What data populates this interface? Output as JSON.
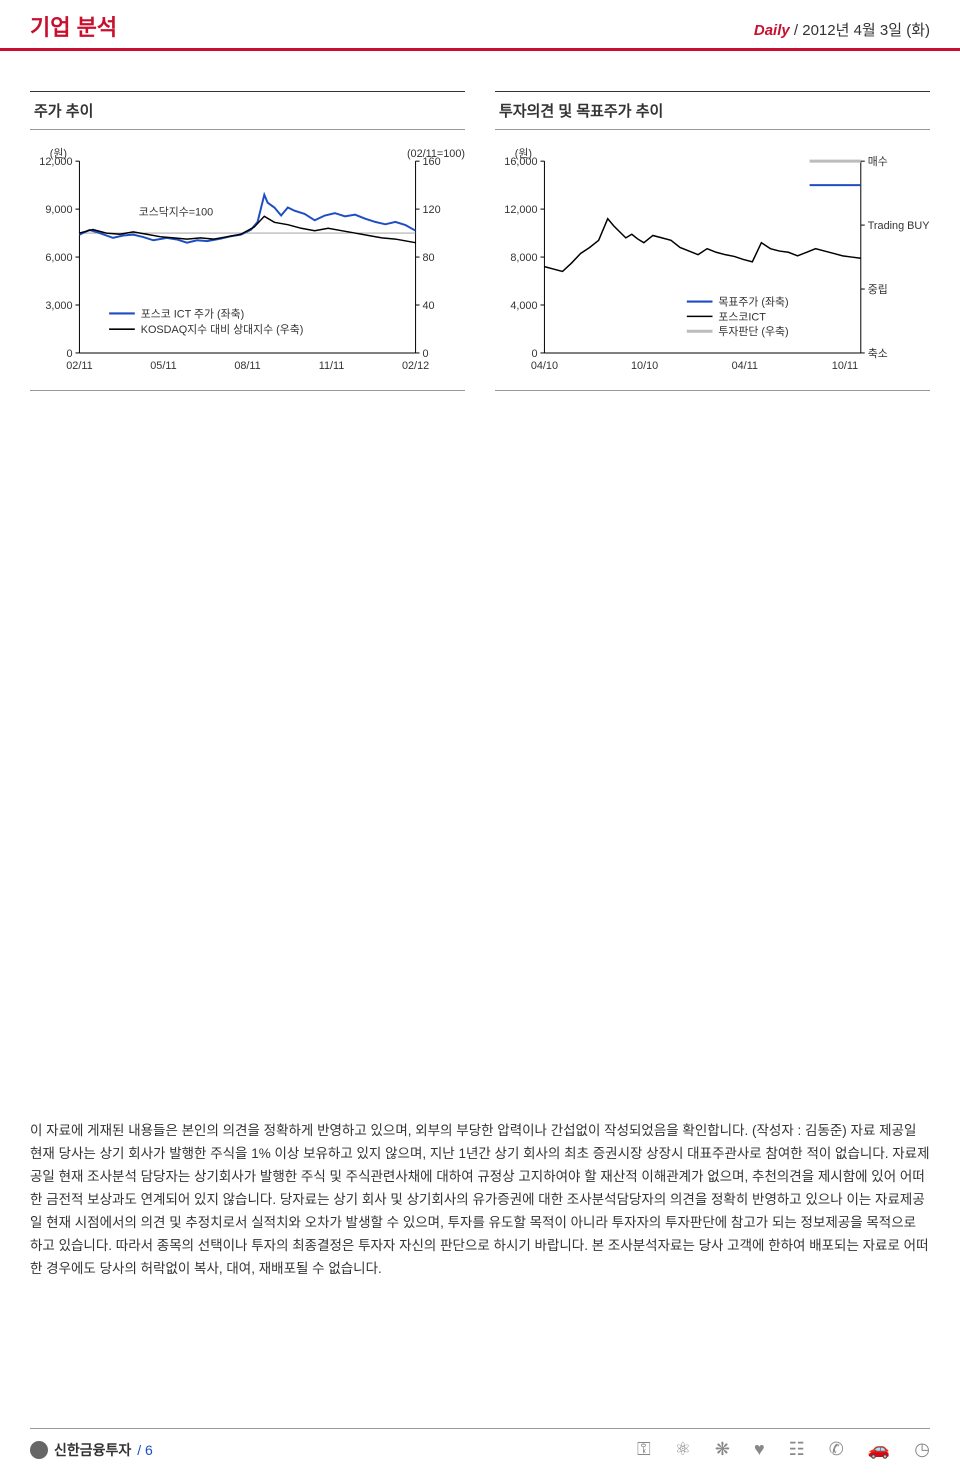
{
  "header": {
    "title": "기업 분석",
    "daily": "Daily",
    "separator": "/",
    "date": "2012년 4월 3일 (화)"
  },
  "chart1": {
    "type": "line-dual-axis",
    "title": "주가 추이",
    "left_axis_label": "(원)",
    "right_axis_label": "(02/11=100)",
    "left_ticks": [
      0,
      3000,
      6000,
      9000,
      12000
    ],
    "left_tick_labels": [
      "0",
      "3,000",
      "6,000",
      "9,000",
      "12,000"
    ],
    "right_ticks": [
      0,
      40,
      80,
      120,
      160
    ],
    "right_tick_labels": [
      "0",
      "40",
      "80",
      "120",
      "160"
    ],
    "x_labels": [
      "02/11",
      "05/11",
      "08/11",
      "11/11",
      "02/12"
    ],
    "annotation": "코스닥지수=100",
    "legend": {
      "posco": "포스코 ICT 주가 (좌축)",
      "kosdaq": "KOSDAQ지수 대비 상대지수 (우축)"
    },
    "colors": {
      "posco": "#1f4ec4",
      "kosdaq": "#000000",
      "axis": "#000000",
      "text": "#333333",
      "annotation_line": "#999999"
    },
    "posco_series": [
      [
        0.0,
        7400
      ],
      [
        0.03,
        7700
      ],
      [
        0.06,
        7500
      ],
      [
        0.1,
        7200
      ],
      [
        0.13,
        7350
      ],
      [
        0.16,
        7400
      ],
      [
        0.19,
        7250
      ],
      [
        0.22,
        7050
      ],
      [
        0.26,
        7200
      ],
      [
        0.29,
        7100
      ],
      [
        0.32,
        6900
      ],
      [
        0.35,
        7050
      ],
      [
        0.38,
        7000
      ],
      [
        0.42,
        7150
      ],
      [
        0.45,
        7300
      ],
      [
        0.48,
        7400
      ],
      [
        0.51,
        7700
      ],
      [
        0.53,
        8200
      ],
      [
        0.55,
        9900
      ],
      [
        0.56,
        9400
      ],
      [
        0.58,
        9100
      ],
      [
        0.6,
        8600
      ],
      [
        0.62,
        9100
      ],
      [
        0.64,
        8900
      ],
      [
        0.67,
        8700
      ],
      [
        0.7,
        8300
      ],
      [
        0.73,
        8600
      ],
      [
        0.76,
        8750
      ],
      [
        0.79,
        8550
      ],
      [
        0.82,
        8650
      ],
      [
        0.85,
        8400
      ],
      [
        0.88,
        8200
      ],
      [
        0.91,
        8050
      ],
      [
        0.94,
        8200
      ],
      [
        0.97,
        8000
      ],
      [
        1.0,
        7650
      ]
    ],
    "kosdaq_series": [
      [
        0.0,
        100
      ],
      [
        0.04,
        103
      ],
      [
        0.08,
        100
      ],
      [
        0.12,
        99
      ],
      [
        0.16,
        101
      ],
      [
        0.2,
        99
      ],
      [
        0.24,
        97
      ],
      [
        0.28,
        96
      ],
      [
        0.32,
        95
      ],
      [
        0.36,
        96
      ],
      [
        0.4,
        95
      ],
      [
        0.44,
        97
      ],
      [
        0.48,
        99
      ],
      [
        0.52,
        105
      ],
      [
        0.55,
        114
      ],
      [
        0.58,
        109
      ],
      [
        0.62,
        107
      ],
      [
        0.66,
        104
      ],
      [
        0.7,
        102
      ],
      [
        0.74,
        104
      ],
      [
        0.78,
        102
      ],
      [
        0.82,
        100
      ],
      [
        0.86,
        98
      ],
      [
        0.9,
        96
      ],
      [
        0.94,
        95
      ],
      [
        1.0,
        92
      ]
    ],
    "font_size_axis": 11,
    "font_size_legend": 11,
    "line_width": 1.5
  },
  "chart2": {
    "type": "line-dual-axis",
    "title": "투자의견 및 목표주가 추이",
    "left_axis_label": "(원)",
    "left_ticks": [
      0,
      4000,
      8000,
      12000,
      16000
    ],
    "left_tick_labels": [
      "0",
      "4,000",
      "8,000",
      "12,000",
      "16,000"
    ],
    "right_cat_labels": [
      "매수",
      "Trading BUY",
      "중립",
      "축소"
    ],
    "right_cat_positions": [
      16000,
      10667,
      5333,
      0
    ],
    "x_labels": [
      "04/10",
      "10/10",
      "04/11",
      "10/11"
    ],
    "legend": {
      "target": "목표주가 (좌축)",
      "posco": "포스코ICT",
      "opinion": "투자판단 (우축)"
    },
    "colors": {
      "target": "#1f4ec4",
      "posco": "#000000",
      "opinion": "#bcbcbc",
      "axis": "#000000",
      "text": "#333333"
    },
    "target_series": [
      [
        0.88,
        14000
      ],
      [
        1.05,
        14000
      ]
    ],
    "posco_series": [
      [
        0.0,
        7200
      ],
      [
        0.03,
        7000
      ],
      [
        0.06,
        6800
      ],
      [
        0.09,
        7500
      ],
      [
        0.12,
        8300
      ],
      [
        0.15,
        8800
      ],
      [
        0.18,
        9400
      ],
      [
        0.21,
        11200
      ],
      [
        0.23,
        10600
      ],
      [
        0.25,
        10100
      ],
      [
        0.27,
        9600
      ],
      [
        0.29,
        9900
      ],
      [
        0.31,
        9500
      ],
      [
        0.33,
        9200
      ],
      [
        0.36,
        9800
      ],
      [
        0.39,
        9600
      ],
      [
        0.42,
        9400
      ],
      [
        0.45,
        8800
      ],
      [
        0.48,
        8500
      ],
      [
        0.51,
        8200
      ],
      [
        0.54,
        8700
      ],
      [
        0.57,
        8400
      ],
      [
        0.6,
        8200
      ],
      [
        0.63,
        8050
      ],
      [
        0.66,
        7800
      ],
      [
        0.69,
        7600
      ],
      [
        0.72,
        9200
      ],
      [
        0.75,
        8700
      ],
      [
        0.78,
        8500
      ],
      [
        0.81,
        8400
      ],
      [
        0.84,
        8100
      ],
      [
        0.87,
        8400
      ],
      [
        0.9,
        8700
      ],
      [
        0.93,
        8500
      ],
      [
        0.96,
        8300
      ],
      [
        0.99,
        8100
      ],
      [
        1.02,
        8000
      ],
      [
        1.05,
        7900
      ]
    ],
    "opinion_series": [
      [
        0.88,
        16000
      ],
      [
        1.05,
        16000
      ]
    ],
    "font_size_axis": 11,
    "font_size_legend": 11,
    "line_width": 1.5
  },
  "disclaimer": "이 자료에 게재된 내용들은 본인의 의견을 정확하게 반영하고 있으며, 외부의 부당한 압력이나 간섭없이 작성되었음을 확인합니다. (작성자 : 김동준) 자료 제공일 현재 당사는 상기 회사가 발행한 주식을 1% 이상 보유하고 있지 않으며, 지난 1년간 상기 회사의 최초 증권시장 상장시 대표주관사로 참여한 적이 없습니다. 자료제공일 현재 조사분석 담당자는 상기회사가 발행한 주식 및 주식관련사채에 대하여 규정상 고지하여야 할 재산적 이해관계가 없으며, 추천의견을 제시함에 있어 어떠한 금전적 보상과도 연계되어 있지 않습니다. 당자료는 상기 회사 및 상기회사의 유가증권에 대한 조사분석담당자의 의견을 정확히 반영하고 있으나 이는 자료제공일 현재 시점에서의 의견 및 추정치로서 실적치와 오차가 발생할 수 있으며, 투자를 유도할 목적이 아니라 투자자의 투자판단에 참고가 되는 정보제공을 목적으로 하고 있습니다. 따라서 종목의 선택이나 투자의 최종결정은 투자자 자신의 판단으로 하시기 바랍니다. 본 조사분석자료는 당사 고객에 한하여 배포되는 자료로 어떠한 경우에도 당사의 허락없이 복사, 대여, 재배포될 수 없습니다.",
  "footer": {
    "company": "신한금융투자",
    "page": "/ 6",
    "icons": [
      "key-icon",
      "atom-icon",
      "gear-icon",
      "heart-icon",
      "chart-icon",
      "phone-icon",
      "car-icon",
      "clock-icon"
    ]
  }
}
